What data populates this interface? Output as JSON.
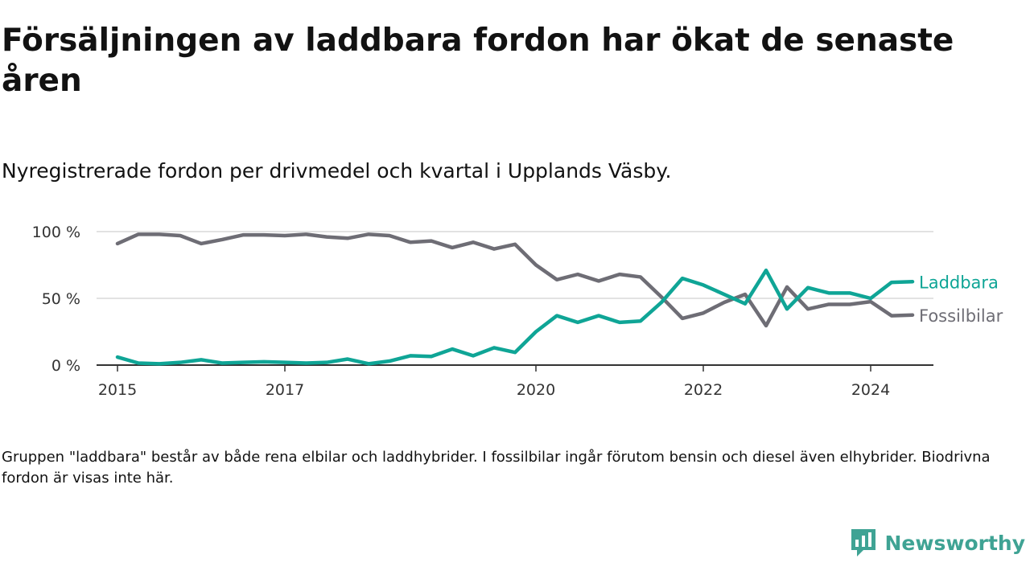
{
  "title": "Försäljningen av laddbara fordon har ökat de senaste åren",
  "subtitle": "Nyregistrerade fordon per drivmedel och kvartal i Upplands Väsby.",
  "footnote": "Gruppen \"laddbara\" består av både rena elbilar och laddhybrider. I fossilbilar ingår förutom bensin och diesel även elhybrider. Biodrivna fordon är visas inte här.",
  "brand": {
    "name": "Newsworthy",
    "logo_icon": "newsworthy-logo-icon",
    "color": "#3fa394"
  },
  "colors": {
    "laddbara": "#0fa596",
    "fossilbilar": "#6e6d75",
    "grid": "#d9d9d9",
    "axis": "#333333"
  },
  "chart_data": {
    "type": "line",
    "title": "Försäljningen av laddbara fordon har ökat de senaste åren",
    "xlabel": "",
    "ylabel": "",
    "x_start": 2015.0,
    "x_step": 0.25,
    "xlim": [
      2014.75,
      2024.75
    ],
    "ylim": [
      0,
      100
    ],
    "x_ticks": [
      {
        "value": 2015,
        "label": "2015"
      },
      {
        "value": 2017,
        "label": "2017"
      },
      {
        "value": 2020,
        "label": "2020"
      },
      {
        "value": 2022,
        "label": "2022"
      },
      {
        "value": 2024,
        "label": "2024"
      }
    ],
    "y_ticks": [
      {
        "value": 0,
        "label": "0 %"
      },
      {
        "value": 50,
        "label": "50 %"
      },
      {
        "value": 100,
        "label": "100 %"
      }
    ],
    "series": [
      {
        "name": "Laddbara",
        "key": "laddbara",
        "values": [
          6,
          1.5,
          1,
          2,
          4,
          1.5,
          2,
          2.5,
          2,
          1.5,
          2,
          4.5,
          1,
          3,
          7,
          6.5,
          12,
          7,
          13,
          9.5,
          25,
          37,
          32,
          37,
          32,
          33,
          47,
          65,
          60,
          53,
          46,
          71,
          42,
          58,
          54,
          54,
          50,
          62,
          62.5
        ]
      },
      {
        "name": "Fossilbilar",
        "key": "fossilbilar",
        "values": [
          91,
          98,
          98,
          97,
          91,
          94,
          97.5,
          97.5,
          97,
          98,
          96,
          95,
          98,
          97,
          92,
          93,
          88,
          92,
          87,
          90.5,
          75,
          64,
          68,
          63,
          68,
          66,
          51,
          35,
          39,
          47,
          53,
          29.5,
          58.5,
          42,
          45.5,
          45.5,
          47.5,
          37,
          37.5
        ]
      }
    ]
  }
}
